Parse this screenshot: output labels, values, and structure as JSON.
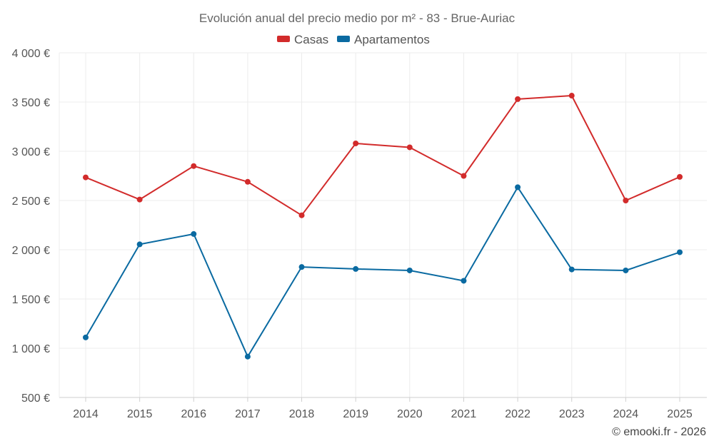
{
  "chart_data": {
    "type": "line",
    "title": "Evolución anual del precio medio por m² - 83 - Brue-Auriac",
    "categories": [
      "2014",
      "2015",
      "2016",
      "2017",
      "2018",
      "2019",
      "2020",
      "2021",
      "2022",
      "2023",
      "2024",
      "2025"
    ],
    "series": [
      {
        "name": "Casas",
        "color": "#d22b2b",
        "values": [
          2735,
          2510,
          2850,
          2690,
          2350,
          3080,
          3040,
          2750,
          3530,
          3565,
          2500,
          2740
        ]
      },
      {
        "name": "Apartamentos",
        "color": "#0a6aa1",
        "values": [
          1110,
          2055,
          2160,
          915,
          1825,
          1805,
          1790,
          1685,
          2635,
          1800,
          1790,
          1975
        ]
      }
    ],
    "ylim": [
      500,
      4000
    ],
    "yticks": [
      500,
      1000,
      1500,
      2000,
      2500,
      3000,
      3500,
      4000
    ],
    "ytick_labels": [
      "500 €",
      "1 000 €",
      "1 500 €",
      "2 000 €",
      "2 500 €",
      "3 000 €",
      "3 500 €",
      "4 000 €"
    ],
    "xlabel": "",
    "ylabel": "",
    "legend_position": "top-center",
    "grid": true
  },
  "credit": "© emooki.fr - 2026"
}
